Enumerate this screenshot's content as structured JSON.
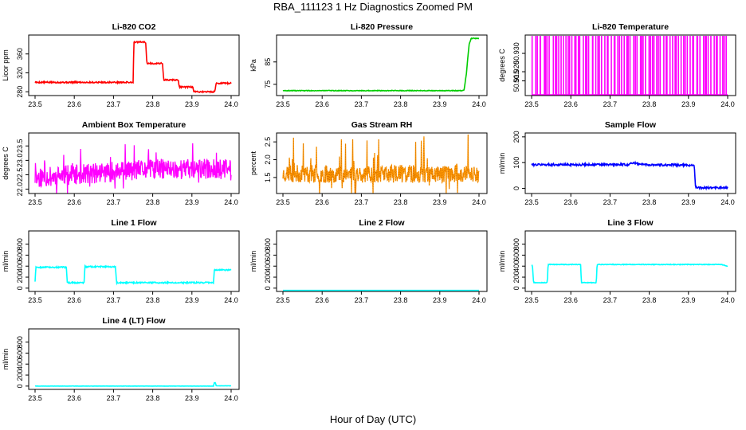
{
  "figure": {
    "title": "RBA_111123  1 Hz Diagnostics Zoomed PM",
    "xlabel": "Hour of Day (UTC)"
  },
  "chart_data": [
    {
      "type": "line",
      "title": "Li-820 CO2",
      "ylabel": "Licor ppm",
      "color": "#ff0000",
      "xlim": [
        23.5,
        24.0
      ],
      "ylim": [
        272,
        400
      ],
      "xticks": [
        23.5,
        23.6,
        23.7,
        23.8,
        23.9,
        24.0
      ],
      "xtick_labels": [
        "23.5",
        "23.6",
        "23.7",
        "23.8",
        "23.9",
        "24.0"
      ],
      "yticks": [
        280,
        320,
        360
      ],
      "ytick_labels": [
        "280",
        "320",
        "360"
      ],
      "x": [
        23.5,
        23.75,
        23.752,
        23.782,
        23.785,
        23.825,
        23.828,
        23.865,
        23.868,
        23.902,
        23.905,
        23.958,
        23.962,
        24.0
      ],
      "y": [
        300,
        300,
        385,
        385,
        340,
        340,
        305,
        305,
        290,
        290,
        280,
        280,
        298,
        298
      ],
      "noise": 1.5
    },
    {
      "type": "line",
      "title": "Li-820 Pressure",
      "ylabel": "kPa",
      "color": "#00cc00",
      "xlim": [
        23.5,
        24.0
      ],
      "ylim": [
        70,
        97
      ],
      "xticks": [
        23.5,
        23.6,
        23.7,
        23.8,
        23.9,
        24.0
      ],
      "xtick_labels": [
        "23.5",
        "23.6",
        "23.7",
        "23.8",
        "23.9",
        "24.0"
      ],
      "yticks": [
        75,
        85
      ],
      "ytick_labels": [
        "75",
        "85"
      ],
      "x": [
        23.5,
        23.955,
        23.962,
        23.968,
        23.972,
        23.975,
        23.98,
        24.0
      ],
      "y": [
        72.2,
        72.2,
        72.5,
        80,
        88,
        93,
        95.5,
        95.5
      ],
      "noise": 0.15
    },
    {
      "type": "spikes",
      "title": "Li-820 Temperature",
      "ylabel": "degrees C",
      "color": "#ff00ff",
      "xlim": [
        23.5,
        24.0
      ],
      "ylim": [
        50.907,
        50.94
      ],
      "xticks": [
        23.5,
        23.6,
        23.7,
        23.8,
        23.9,
        24.0
      ],
      "xtick_labels": [
        "23.5",
        "23.6",
        "23.7",
        "23.8",
        "23.9",
        "24.0"
      ],
      "yticks": [
        50.915,
        50.92,
        50.93
      ],
      "ytick_labels": [
        "50.915",
        "50.920",
        "50.930"
      ],
      "low": 50.907,
      "high": 50.94,
      "count": 90,
      "seed": 7
    },
    {
      "type": "noisy",
      "title": "Ambient Box Temperature",
      "ylabel": "degrees C",
      "color": "#ff00ff",
      "xlim": [
        23.5,
        24.0
      ],
      "ylim": [
        21.85,
        23.95
      ],
      "xticks": [
        23.5,
        23.6,
        23.7,
        23.8,
        23.9,
        24.0
      ],
      "xtick_labels": [
        "23.5",
        "23.6",
        "23.7",
        "23.8",
        "23.9",
        "24.0"
      ],
      "yticks": [
        22.0,
        22.5,
        23.0,
        23.5
      ],
      "ytick_labels": [
        "22.0",
        "22.5",
        "23.0",
        "23.5"
      ],
      "mean_x": [
        23.5,
        23.6,
        23.7,
        23.8,
        24.0
      ],
      "mean_y": [
        22.4,
        22.5,
        22.6,
        22.7,
        22.7
      ],
      "amp": 0.35,
      "spike": 0.8,
      "count": 520,
      "seed": 11
    },
    {
      "type": "noisy_points",
      "title": "Gas Stream RH",
      "ylabel": "percent",
      "color": "#ff9900",
      "color2": "#cc6600",
      "xlim": [
        23.5,
        24.0
      ],
      "ylim": [
        1.05,
        2.75
      ],
      "xticks": [
        23.5,
        23.6,
        23.7,
        23.8,
        23.9,
        24.0
      ],
      "xtick_labels": [
        "23.5",
        "23.6",
        "23.7",
        "23.8",
        "23.9",
        "24.0"
      ],
      "yticks": [
        1.5,
        2.0,
        2.5
      ],
      "ytick_labels": [
        "1.5",
        "2.0",
        "2.5"
      ],
      "mean_x": [
        23.5,
        24.0
      ],
      "mean_y": [
        1.6,
        1.6
      ],
      "amp": 0.25,
      "spike": 0.95,
      "count": 520,
      "seed": 23
    },
    {
      "type": "line",
      "title": "Sample Flow",
      "ylabel": "ml/min",
      "color": "#0000ff",
      "xlim": [
        23.5,
        24.0
      ],
      "ylim": [
        -20,
        215
      ],
      "xticks": [
        23.5,
        23.6,
        23.7,
        23.8,
        23.9,
        24.0
      ],
      "xtick_labels": [
        "23.5",
        "23.6",
        "23.7",
        "23.8",
        "23.9",
        "24.0"
      ],
      "yticks": [
        0,
        100,
        200
      ],
      "ytick_labels": [
        "0",
        "100",
        "200"
      ],
      "x": [
        23.5,
        23.75,
        23.752,
        23.76,
        23.79,
        23.915,
        23.918,
        23.922,
        24.0
      ],
      "y": [
        92,
        92,
        100,
        98,
        92,
        90,
        5,
        2,
        2
      ],
      "noise": 4
    },
    {
      "type": "line",
      "title": "Line 1 Flow",
      "ylabel": "ml/min",
      "color": "#00ffff",
      "xlim": [
        23.5,
        24.0
      ],
      "ylim": [
        -60,
        1040
      ],
      "xticks": [
        23.5,
        23.6,
        23.7,
        23.8,
        23.9,
        24.0
      ],
      "xtick_labels": [
        "23.5",
        "23.6",
        "23.7",
        "23.8",
        "23.9",
        "24.0"
      ],
      "yticks": [
        0,
        200,
        400,
        600,
        800
      ],
      "ytick_labels": [
        "0",
        "200",
        "400",
        "600",
        "800"
      ],
      "x": [
        23.5,
        23.502,
        23.58,
        23.582,
        23.625,
        23.627,
        23.705,
        23.708,
        23.955,
        23.957,
        24.0
      ],
      "y": [
        120,
        380,
        380,
        100,
        100,
        390,
        390,
        100,
        100,
        330,
        330
      ],
      "noise": 12
    },
    {
      "type": "line",
      "title": "Line 2 Flow",
      "ylabel": "ml/min",
      "color": "#00ffff",
      "xlim": [
        23.5,
        24.0
      ],
      "ylim": [
        -60,
        1040
      ],
      "xticks": [
        23.5,
        23.6,
        23.7,
        23.8,
        23.9,
        24.0
      ],
      "xtick_labels": [
        "23.5",
        "23.6",
        "23.7",
        "23.8",
        "23.9",
        "24.0"
      ],
      "yticks": [
        0,
        200,
        400,
        600,
        800
      ],
      "ytick_labels": [
        "0",
        "200",
        "400",
        "600",
        "800"
      ],
      "x": [
        23.5,
        24.0
      ],
      "y": [
        -40,
        -40
      ],
      "noise": 0
    },
    {
      "type": "line",
      "title": "Line 3 Flow",
      "ylabel": "ml/min",
      "color": "#00ffff",
      "xlim": [
        23.5,
        24.0
      ],
      "ylim": [
        -60,
        1040
      ],
      "xticks": [
        23.5,
        23.6,
        23.7,
        23.8,
        23.9,
        24.0
      ],
      "xtick_labels": [
        "23.5",
        "23.6",
        "23.7",
        "23.8",
        "23.9",
        "24.0"
      ],
      "yticks": [
        0,
        200,
        400,
        600,
        800
      ],
      "ytick_labels": [
        "0",
        "200",
        "400",
        "600",
        "800"
      ],
      "x": [
        23.5,
        23.502,
        23.505,
        23.54,
        23.542,
        23.625,
        23.627,
        23.665,
        23.667,
        23.985,
        24.0
      ],
      "y": [
        420,
        420,
        100,
        100,
        430,
        430,
        100,
        100,
        430,
        430,
        400
      ],
      "noise": 6
    },
    {
      "type": "line",
      "title": "Line 4 (LT) Flow",
      "ylabel": "ml/min",
      "color": "#00ffff",
      "xlim": [
        23.5,
        24.0
      ],
      "ylim": [
        -60,
        1040
      ],
      "xticks": [
        23.5,
        23.6,
        23.7,
        23.8,
        23.9,
        24.0
      ],
      "xtick_labels": [
        "23.5",
        "23.6",
        "23.7",
        "23.8",
        "23.9",
        "24.0"
      ],
      "yticks": [
        0,
        200,
        400,
        600,
        800
      ],
      "ytick_labels": [
        "0",
        "200",
        "400",
        "600",
        "800"
      ],
      "x": [
        23.5,
        23.955,
        23.957,
        23.96,
        23.962,
        24.0
      ],
      "y": [
        0,
        0,
        60,
        60,
        5,
        5
      ],
      "noise": 2
    }
  ]
}
